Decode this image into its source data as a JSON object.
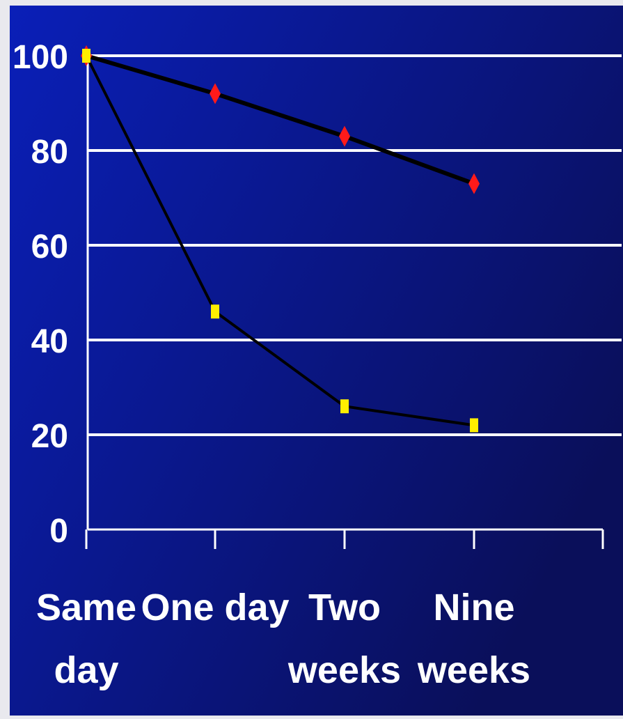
{
  "chart_data": {
    "type": "line",
    "categories": [
      [
        "Same",
        "day"
      ],
      [
        "One day"
      ],
      [
        "Two",
        "weeks"
      ],
      [
        "Nine",
        "weeks"
      ]
    ],
    "y_ticks": [
      "100",
      "80",
      "60",
      "40",
      "20",
      "0"
    ],
    "ylim": [
      0,
      100
    ],
    "grid": true,
    "series": [
      {
        "values": [
          100,
          92,
          83,
          73
        ],
        "marker": "diamond",
        "color": "#ff1a1a"
      },
      {
        "values": [
          100,
          46,
          26,
          22
        ],
        "marker": "square",
        "color": "#ffee00"
      }
    ],
    "line_color": "#000000",
    "grid_color": "#ffffff",
    "background": {
      "from": "#0a1fb8",
      "to": "#0a0f5a"
    }
  }
}
